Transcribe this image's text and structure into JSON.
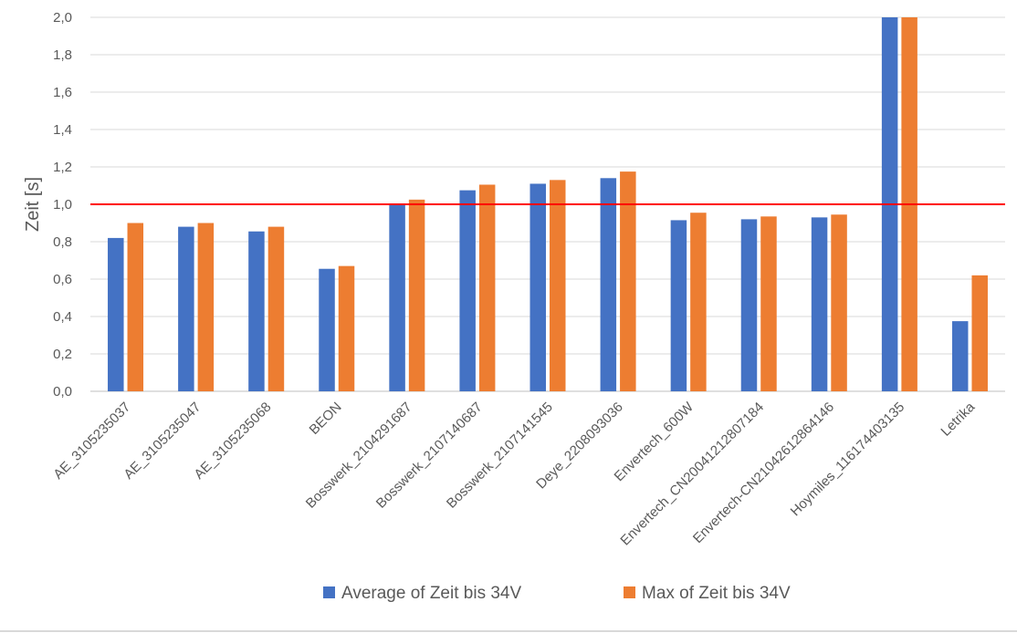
{
  "chart_data": {
    "type": "bar",
    "ylabel": "Zeit [s]",
    "xlabel": "",
    "ylim": [
      0,
      2.0
    ],
    "yticks": [
      "0,0",
      "0,2",
      "0,4",
      "0,6",
      "0,8",
      "1,0",
      "1,2",
      "1,4",
      "1,6",
      "1,8",
      "2,0"
    ],
    "grid": true,
    "legend_position": "bottom",
    "reference_line": {
      "value": 1.0,
      "color": "#ff0000"
    },
    "categories": [
      "AE_3105235037",
      "AE_3105235047",
      "AE_3105235068",
      "BEON",
      "Bosswerk_2104291687",
      "Bosswerk_2107140687",
      "Bosswerk_2107141545",
      "Deye_2208093036",
      "Envertech_600W",
      "Envertech_CN20041212807184",
      "Envertech-CN21042612864146",
      "Hoymiles_116174403135",
      "Letrika"
    ],
    "series": [
      {
        "name": "Average of Zeit bis 34V",
        "color": "#4472c4",
        "values": [
          0.82,
          0.88,
          0.855,
          0.655,
          1.0,
          1.075,
          1.11,
          1.14,
          0.915,
          0.92,
          0.93,
          2.0,
          0.375
        ]
      },
      {
        "name": "Max of Zeit bis 34V",
        "color": "#ed7d31",
        "values": [
          0.9,
          0.9,
          0.88,
          0.67,
          1.025,
          1.105,
          1.13,
          1.175,
          0.955,
          0.935,
          0.945,
          2.0,
          0.62
        ]
      }
    ]
  }
}
